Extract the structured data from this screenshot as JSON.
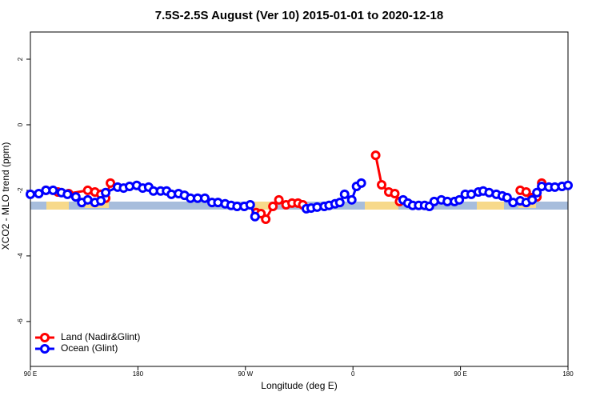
{
  "chart_data": {
    "type": "line",
    "title": "7.5S-2.5S August (Ver 10)   2015-01-01 to 2020-12-18",
    "x_label": "Longitude (deg E)",
    "y_label": "XCO2 - MLO trend (ppm)",
    "xlim": [
      90,
      540
    ],
    "xticks": [
      {
        "value": 90,
        "label": "90 E"
      },
      {
        "value": 180,
        "label": "180"
      },
      {
        "value": 270,
        "label": "90 W"
      },
      {
        "value": 360,
        "label": "0"
      },
      {
        "value": 450,
        "label": "90 E"
      },
      {
        "value": 540,
        "label": "180"
      }
    ],
    "ylim": [
      -7.37,
      2.83
    ],
    "yticks": [
      2,
      0,
      -2,
      -4,
      -6
    ],
    "legend": "bottom-left",
    "series": [
      {
        "name": "Land (Nadir&Glint)",
        "color": "#ff0000",
        "x": [
          103,
          113,
          122,
          138,
          144,
          149,
          153,
          157,
          200,
          279,
          283,
          287,
          293,
          298,
          304,
          309,
          314,
          318,
          340,
          379,
          384,
          390,
          395,
          399,
          450,
          500,
          505,
          510,
          514,
          518
        ],
        "values": [
          -2.0,
          -2.05,
          -2.1,
          -2.0,
          -2.05,
          -2.12,
          -2.24,
          -1.78,
          null,
          -2.68,
          -2.71,
          -2.88,
          -2.49,
          -2.29,
          -2.44,
          -2.39,
          -2.39,
          -2.44,
          null,
          -0.93,
          -1.83,
          -2.05,
          -2.1,
          -2.34,
          null,
          -2.0,
          -2.05,
          -2.22,
          -2.2,
          -1.78
        ]
      },
      {
        "name": "Ocean (Glint)",
        "color": "#0000ff",
        "x": [
          90,
          97,
          103,
          109,
          116,
          121,
          128,
          133,
          138,
          144,
          149,
          153,
          163,
          168,
          173,
          179,
          184,
          189,
          193,
          199,
          204,
          208,
          214,
          219,
          224,
          230,
          236,
          242,
          247,
          253,
          258,
          263,
          269,
          274,
          278,
          315,
          321,
          325,
          330,
          336,
          340,
          345,
          349,
          353,
          359,
          363,
          367,
          380,
          402,
          406,
          410,
          415,
          420,
          424,
          428,
          434,
          439,
          445,
          449,
          454,
          459,
          465,
          469,
          474,
          480,
          485,
          489,
          494,
          500,
          505,
          510,
          514,
          518,
          524,
          529,
          535,
          540
        ],
        "values": [
          -2.12,
          -2.1,
          -2.0,
          -2.0,
          -2.07,
          -2.12,
          -2.2,
          -2.37,
          -2.29,
          -2.37,
          -2.32,
          -2.07,
          -1.9,
          -1.93,
          -1.88,
          -1.85,
          -1.93,
          -1.9,
          -2.02,
          -2.02,
          -2.02,
          -2.12,
          -2.1,
          -2.15,
          -2.24,
          -2.24,
          -2.24,
          -2.37,
          -2.37,
          -2.41,
          -2.46,
          -2.49,
          -2.49,
          -2.44,
          -2.8,
          null,
          -2.56,
          -2.54,
          -2.51,
          -2.49,
          -2.46,
          -2.41,
          -2.37,
          -2.12,
          -2.29,
          -1.88,
          -1.78,
          null,
          -2.29,
          -2.39,
          -2.46,
          -2.46,
          -2.46,
          -2.49,
          -2.34,
          -2.29,
          -2.34,
          -2.34,
          -2.29,
          -2.12,
          -2.12,
          -2.05,
          -2.02,
          -2.07,
          -2.12,
          -2.17,
          -2.22,
          -2.37,
          -2.32,
          -2.37,
          -2.29,
          -2.07,
          -1.88,
          -1.9,
          -1.9,
          -1.88,
          -1.85
        ]
      }
    ]
  }
}
